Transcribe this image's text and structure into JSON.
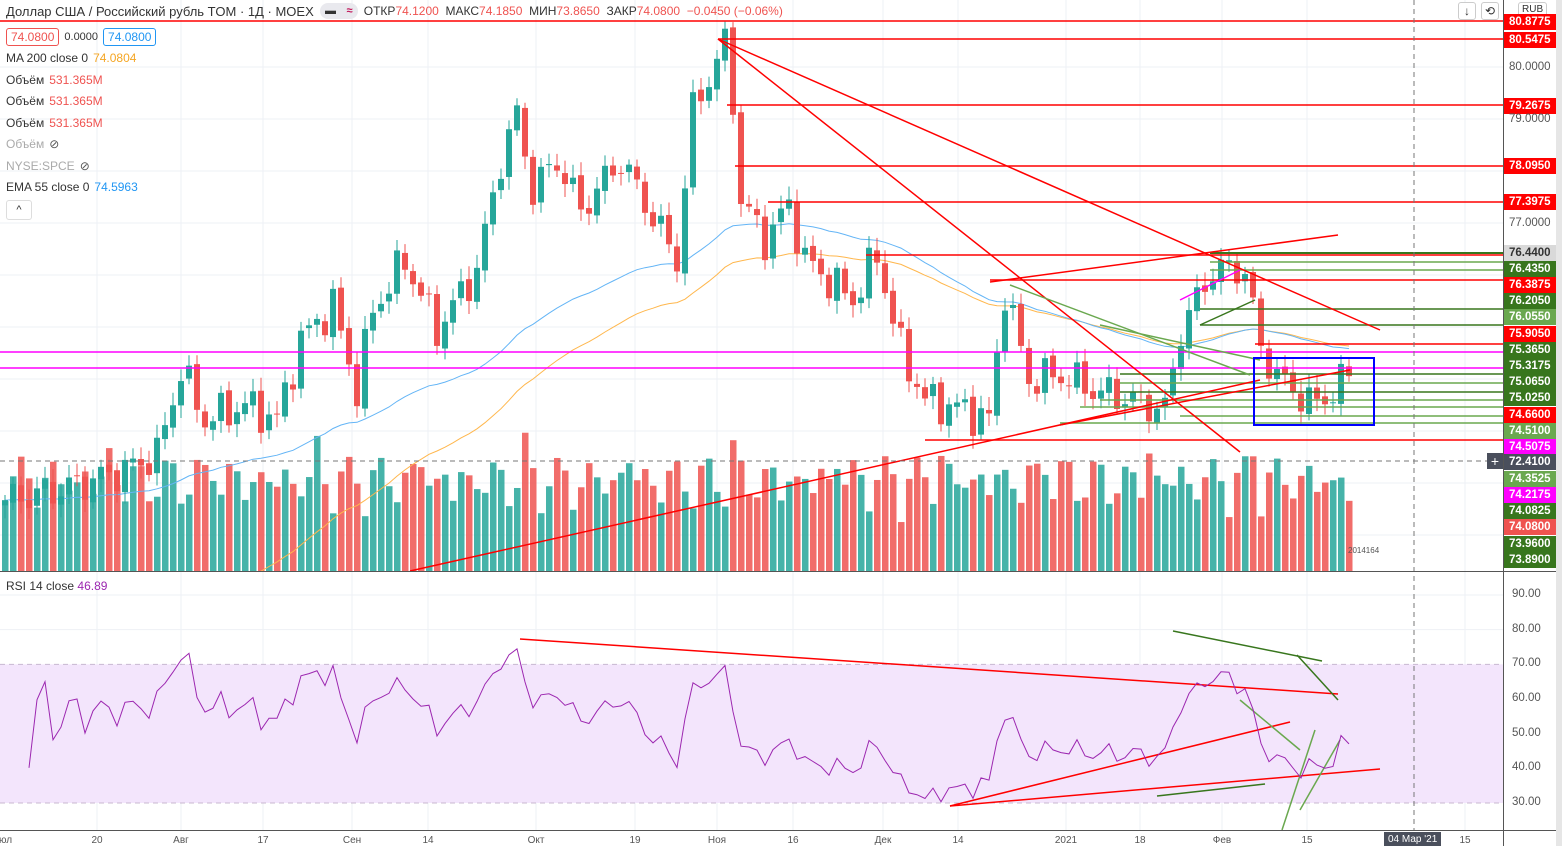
{
  "header": {
    "title": "Доллар США / Российский рубль TOM · 1Д · MOEX",
    "open_label": "ОТКР",
    "open": "74.1200",
    "high_label": "МАКС",
    "high": "74.1850",
    "low_label": "МИН",
    "low": "73.8650",
    "close_label": "ЗАКР",
    "close": "74.0800",
    "change": "−0.0450 (−0.06%)"
  },
  "legend": {
    "bid": "74.0800",
    "spread": "0.0000",
    "ask": "74.0800",
    "indicators": [
      {
        "name": "MA 200 close 0",
        "value": "74.0804"
      },
      {
        "name": "Объём",
        "value": "531.365M"
      },
      {
        "name": "Объём",
        "value": "531.365M"
      },
      {
        "name": "Объём",
        "value": "531.365M"
      },
      {
        "name": "Объём",
        "value": ""
      },
      {
        "name": "NYSE:SPCE",
        "value": ""
      },
      {
        "name": "EMA 55 close 0",
        "value": "74.5963"
      }
    ]
  },
  "rsi": {
    "name": "RSI 14 close",
    "value": "46.89",
    "ticks": [
      "90.00",
      "80.00",
      "70.00",
      "60.00",
      "50.00",
      "40.00",
      "30.00"
    ]
  },
  "currency": "RUB",
  "volume_badge": "2014164",
  "price_labels": [
    {
      "text": "80.8775",
      "color": "#ff0000"
    },
    {
      "text": "80.5475",
      "color": "#ff0000"
    },
    {
      "text": "80.0000",
      "color": ""
    },
    {
      "text": "79.2675",
      "color": "#ff0000"
    },
    {
      "text": "79.0000",
      "color": ""
    },
    {
      "text": "78.0950",
      "color": "#ff0000"
    },
    {
      "text": "77.3975",
      "color": "#ff0000"
    },
    {
      "text": "77.0000",
      "color": ""
    },
    {
      "text": "76.4400",
      "color": "#d9d9d9"
    },
    {
      "text": "76.4350",
      "color": "#38761d"
    },
    {
      "text": "76.3875",
      "color": "#ff0000"
    },
    {
      "text": "76.2050",
      "color": "#38761d"
    },
    {
      "text": "76.0550",
      "color": "#6aa84f"
    },
    {
      "text": "75.9050",
      "color": "#ff0000"
    },
    {
      "text": "75.3650",
      "color": "#38761d"
    },
    {
      "text": "75.3175",
      "color": "#38761d"
    },
    {
      "text": "75.0650",
      "color": "#38761d"
    },
    {
      "text": "75.0250",
      "color": "#38761d"
    },
    {
      "text": "74.6600",
      "color": "#ff0000"
    },
    {
      "text": "74.5100",
      "color": "#6aa84f"
    },
    {
      "text": "74.5075",
      "color": "#ff00ff"
    },
    {
      "text": "72.4100",
      "color": "#4a4f5c"
    },
    {
      "text": "74.3525",
      "color": "#6aa84f"
    },
    {
      "text": "74.2175",
      "color": "#ff00ff"
    },
    {
      "text": "74.0825",
      "color": "#38761d"
    },
    {
      "text": "74.0800",
      "color": "#ef5350"
    },
    {
      "text": "73.9600",
      "color": "#38761d"
    },
    {
      "text": "73.8900",
      "color": "#38761d"
    }
  ],
  "time_labels": [
    "Июл",
    "20",
    "Авг",
    "17",
    "Сен",
    "14",
    "Окт",
    "19",
    "Ноя",
    "16",
    "Дек",
    "14",
    "2021",
    "18",
    "Фев",
    "15",
    "15"
  ],
  "crosshair_date": "04 Мар '21",
  "colors": {
    "up": "#26a69a",
    "down": "#ef5350",
    "ema": "#64b5f6",
    "ma": "#ffb74d",
    "rsi": "#9c27b0"
  },
  "chart_data": {
    "type": "candlestick",
    "price_path": [
      [
        0,
        71.67
      ],
      [
        7,
        71.87
      ],
      [
        15,
        72.25
      ],
      [
        19,
        72.54
      ],
      [
        22,
        74.17
      ],
      [
        25,
        73.21
      ],
      [
        30,
        73.5
      ],
      [
        34,
        73.21
      ],
      [
        37,
        74.75
      ],
      [
        41,
        75.42
      ],
      [
        44,
        73.79
      ],
      [
        46,
        75.33
      ],
      [
        50,
        76.29
      ],
      [
        54,
        74.94
      ],
      [
        59,
        76.1
      ],
      [
        62,
        78.21
      ],
      [
        64,
        79.08
      ],
      [
        66,
        77.63
      ],
      [
        69,
        78.21
      ],
      [
        72,
        77.25
      ],
      [
        77,
        78.21
      ],
      [
        84,
        76.29
      ],
      [
        86,
        79.17
      ],
      [
        90,
        80.42
      ],
      [
        91,
        79.37
      ],
      [
        92,
        77.44
      ],
      [
        95,
        76.67
      ],
      [
        98,
        77.35
      ],
      [
        100,
        76.29
      ],
      [
        106,
        75.52
      ],
      [
        109,
        76.38
      ],
      [
        112,
        74.56
      ],
      [
        115,
        73.6
      ],
      [
        120,
        73.4
      ],
      [
        123,
        73.21
      ],
      [
        125,
        75.71
      ],
      [
        128,
        73.98
      ],
      [
        132,
        74.08
      ],
      [
        136,
        73.79
      ],
      [
        141,
        73.6
      ],
      [
        145,
        73.4
      ],
      [
        147,
        74.94
      ],
      [
        151,
        76.1
      ],
      [
        155,
        76.1
      ],
      [
        157,
        74.56
      ],
      [
        160,
        73.88
      ],
      [
        164,
        73.5
      ],
      [
        168,
        74.08
      ]
    ]
  }
}
